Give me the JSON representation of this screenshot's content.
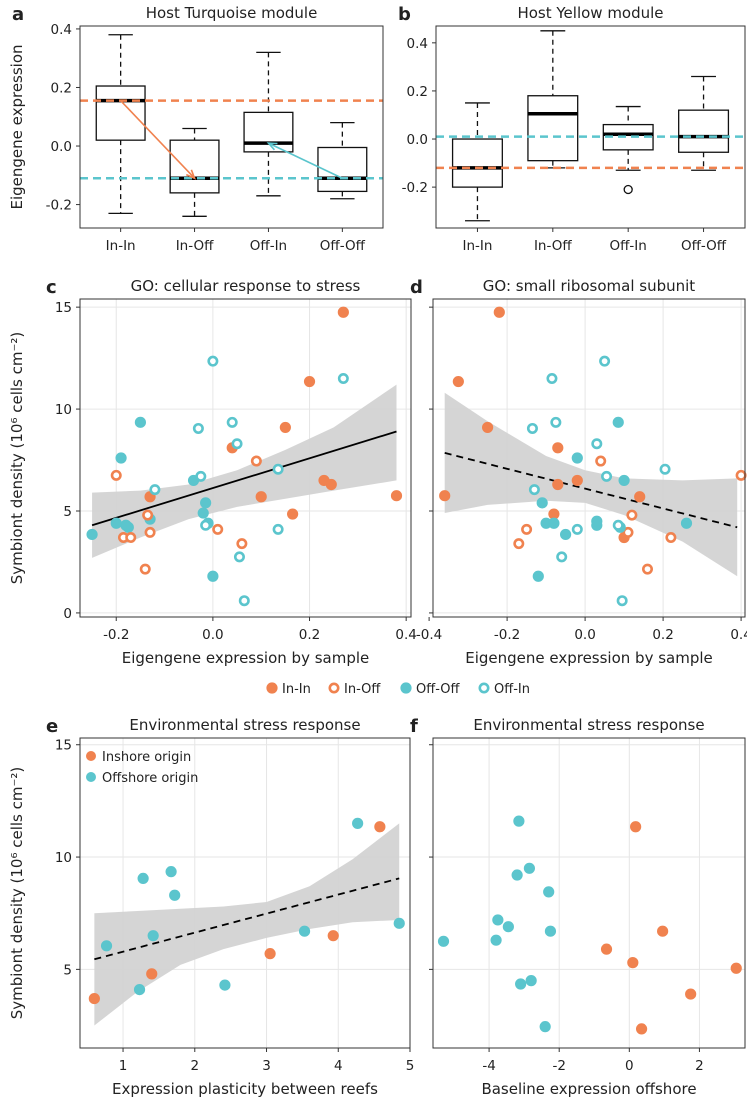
{
  "colors": {
    "inshore": "#F0824F",
    "offshore": "#5BC5CD",
    "ribbon": "#D3D3D3"
  },
  "chart_data": [
    {
      "id": "a",
      "type": "boxplot",
      "title": "Host Turquoise module",
      "ylabel": "Eigengene expression",
      "categories": [
        "In-In",
        "In-Off",
        "Off-In",
        "Off-Off"
      ],
      "ylim": [
        -0.28,
        0.41
      ],
      "yticks": [
        -0.2,
        0.0,
        0.2,
        0.4
      ],
      "ytick_labels": [
        "-0.2",
        "0.0",
        "0.2",
        "0.4"
      ],
      "boxes": [
        {
          "min": -0.23,
          "q1": 0.02,
          "median": 0.155,
          "q3": 0.205,
          "max": 0.38
        },
        {
          "min": -0.24,
          "q1": -0.16,
          "median": -0.11,
          "q3": 0.02,
          "max": 0.06
        },
        {
          "min": -0.17,
          "q1": -0.02,
          "median": 0.01,
          "q3": 0.115,
          "max": 0.32
        },
        {
          "min": -0.18,
          "q1": -0.155,
          "median": -0.11,
          "q3": -0.005,
          "max": 0.08
        }
      ],
      "hlines": [
        {
          "y": 0.155,
          "color": "inshore"
        },
        {
          "y": -0.11,
          "color": "offshore"
        }
      ],
      "arrows": [
        {
          "from_cat": 0,
          "from_y": 0.155,
          "to_cat": 1,
          "to_y": -0.11,
          "color": "inshore"
        },
        {
          "from_cat": 3,
          "from_y": -0.11,
          "to_cat": 2,
          "to_y": 0.01,
          "color": "offshore"
        }
      ]
    },
    {
      "id": "b",
      "type": "boxplot",
      "title": "Host Yellow module",
      "ylabel": "",
      "categories": [
        "In-In",
        "In-Off",
        "Off-In",
        "Off-Off"
      ],
      "ylim": [
        -0.37,
        0.47
      ],
      "yticks": [
        -0.2,
        0.0,
        0.2,
        0.4
      ],
      "ytick_labels": [
        "-0.2",
        "0.0",
        "0.2",
        "0.4"
      ],
      "boxes": [
        {
          "min": -0.34,
          "q1": -0.2,
          "median": -0.12,
          "q3": 0.0,
          "max": 0.15,
          "outliers": []
        },
        {
          "min": -0.12,
          "q1": -0.09,
          "median": 0.105,
          "q3": 0.18,
          "max": 0.45,
          "outliers": []
        },
        {
          "min": -0.13,
          "q1": -0.045,
          "median": 0.02,
          "q3": 0.06,
          "max": 0.135,
          "outliers": [
            -0.21
          ]
        },
        {
          "min": -0.13,
          "q1": -0.055,
          "median": 0.01,
          "q3": 0.12,
          "max": 0.26,
          "outliers": []
        }
      ],
      "hlines": [
        {
          "y": 0.01,
          "color": "offshore"
        },
        {
          "y": -0.12,
          "color": "inshore"
        }
      ]
    },
    {
      "id": "c",
      "type": "scatter",
      "title": "GO: cellular response to stress",
      "xlabel": "Eigengene expression by sample",
      "ylabel": "Symbiont density (10⁶ cells cm⁻²)",
      "xlim": [
        -0.275,
        0.41
      ],
      "ylim": [
        -0.2,
        15.4
      ],
      "xticks": [
        -0.2,
        0.0,
        0.2,
        0.4
      ],
      "xtick_labels": [
        "-0.2",
        "0.0",
        "0.2",
        "0.4"
      ],
      "yticks": [
        0,
        5,
        10,
        15
      ],
      "ytick_labels": [
        "0",
        "5",
        "10",
        "15"
      ],
      "trend": {
        "x": [
          -0.25,
          0.38
        ],
        "y": [
          4.3,
          8.9
        ],
        "dash": false
      },
      "ribbon": {
        "x": [
          -0.25,
          -0.15,
          -0.05,
          0.05,
          0.15,
          0.25,
          0.38
        ],
        "upper": [
          5.9,
          6.0,
          6.3,
          7.0,
          8.0,
          9.1,
          11.2
        ],
        "lower": [
          2.7,
          3.7,
          4.6,
          5.2,
          5.6,
          6.0,
          6.5
        ]
      },
      "points": [
        {
          "x": -0.25,
          "y": 3.85,
          "g": "Off-Off"
        },
        {
          "x": -0.2,
          "y": 4.4,
          "g": "Off-Off"
        },
        {
          "x": -0.19,
          "y": 7.6,
          "g": "Off-Off"
        },
        {
          "x": -0.18,
          "y": 4.3,
          "g": "Off-Off"
        },
        {
          "x": -0.175,
          "y": 4.2,
          "g": "Off-Off"
        },
        {
          "x": -0.15,
          "y": 9.35,
          "g": "Off-Off"
        },
        {
          "x": -0.13,
          "y": 4.6,
          "g": "Off-Off"
        },
        {
          "x": -0.04,
          "y": 6.5,
          "g": "Off-Off"
        },
        {
          "x": -0.02,
          "y": 4.9,
          "g": "Off-Off"
        },
        {
          "x": -0.015,
          "y": 5.4,
          "g": "Off-Off"
        },
        {
          "x": -0.01,
          "y": 4.4,
          "g": "Off-Off"
        },
        {
          "x": 0.0,
          "y": 1.8,
          "g": "Off-Off"
        },
        {
          "x": -0.2,
          "y": 6.75,
          "g": "In-Off"
        },
        {
          "x": -0.185,
          "y": 3.7,
          "g": "In-Off"
        },
        {
          "x": -0.17,
          "y": 3.7,
          "g": "In-Off"
        },
        {
          "x": -0.14,
          "y": 2.15,
          "g": "In-Off"
        },
        {
          "x": -0.135,
          "y": 4.8,
          "g": "In-Off"
        },
        {
          "x": -0.13,
          "y": 3.95,
          "g": "In-Off"
        },
        {
          "x": 0.01,
          "y": 4.1,
          "g": "In-Off"
        },
        {
          "x": 0.06,
          "y": 3.4,
          "g": "In-Off"
        },
        {
          "x": 0.09,
          "y": 7.45,
          "g": "In-Off"
        },
        {
          "x": -0.13,
          "y": 5.7,
          "g": "In-In"
        },
        {
          "x": 0.04,
          "y": 8.1,
          "g": "In-In"
        },
        {
          "x": 0.1,
          "y": 5.7,
          "g": "In-In"
        },
        {
          "x": 0.15,
          "y": 9.1,
          "g": "In-In"
        },
        {
          "x": 0.165,
          "y": 4.85,
          "g": "In-In"
        },
        {
          "x": 0.2,
          "y": 11.35,
          "g": "In-In"
        },
        {
          "x": 0.23,
          "y": 6.5,
          "g": "In-In"
        },
        {
          "x": 0.245,
          "y": 6.3,
          "g": "In-In"
        },
        {
          "x": 0.27,
          "y": 14.75,
          "g": "In-In"
        },
        {
          "x": 0.38,
          "y": 5.75,
          "g": "In-In"
        },
        {
          "x": -0.12,
          "y": 6.05,
          "g": "Off-In"
        },
        {
          "x": -0.03,
          "y": 9.05,
          "g": "Off-In"
        },
        {
          "x": -0.025,
          "y": 6.7,
          "g": "Off-In"
        },
        {
          "x": -0.015,
          "y": 4.3,
          "g": "Off-In"
        },
        {
          "x": 0.0,
          "y": 12.35,
          "g": "Off-In"
        },
        {
          "x": 0.04,
          "y": 9.35,
          "g": "Off-In"
        },
        {
          "x": 0.05,
          "y": 8.3,
          "g": "Off-In"
        },
        {
          "x": 0.055,
          "y": 2.75,
          "g": "Off-In"
        },
        {
          "x": 0.065,
          "y": 0.6,
          "g": "Off-In"
        },
        {
          "x": 0.135,
          "y": 4.1,
          "g": "Off-In"
        },
        {
          "x": 0.135,
          "y": 7.05,
          "g": "Off-In"
        },
        {
          "x": 0.27,
          "y": 11.5,
          "g": "Off-In"
        }
      ]
    },
    {
      "id": "d",
      "type": "scatter",
      "title": "GO: small ribosomal subunit",
      "xlabel": "Eigengene expression by sample",
      "ylabel": "",
      "xlim": [
        -0.39,
        0.41
      ],
      "ylim": [
        -0.2,
        15.4
      ],
      "xticks": [
        -0.4,
        -0.2,
        0.0,
        0.2,
        0.4
      ],
      "xtick_labels": [
        "-0.4",
        "-0.2",
        "0.0",
        "0.2",
        "0.4"
      ],
      "yticks": [
        0,
        5,
        10,
        15
      ],
      "ytick_labels": [],
      "trend": {
        "x": [
          -0.36,
          0.39
        ],
        "y": [
          7.85,
          4.2
        ],
        "dash": true
      },
      "ribbon": {
        "x": [
          -0.36,
          -0.25,
          -0.1,
          0.0,
          0.1,
          0.25,
          0.39
        ],
        "upper": [
          10.8,
          9.4,
          7.7,
          7.0,
          6.6,
          6.5,
          6.6
        ],
        "lower": [
          4.9,
          5.3,
          5.5,
          5.4,
          4.8,
          3.5,
          1.8
        ]
      },
      "points": [
        {
          "x": -0.36,
          "y": 5.75,
          "g": "In-In"
        },
        {
          "x": -0.325,
          "y": 11.35,
          "g": "In-In"
        },
        {
          "x": -0.25,
          "y": 9.1,
          "g": "In-In"
        },
        {
          "x": -0.22,
          "y": 14.75,
          "g": "In-In"
        },
        {
          "x": -0.07,
          "y": 6.3,
          "g": "In-In"
        },
        {
          "x": -0.08,
          "y": 4.85,
          "g": "In-In"
        },
        {
          "x": -0.07,
          "y": 8.1,
          "g": "In-In"
        },
        {
          "x": -0.02,
          "y": 6.5,
          "g": "In-In"
        },
        {
          "x": 0.1,
          "y": 3.7,
          "g": "In-In"
        },
        {
          "x": 0.14,
          "y": 5.7,
          "g": "In-In"
        },
        {
          "x": -0.17,
          "y": 3.4,
          "g": "In-Off"
        },
        {
          "x": -0.15,
          "y": 4.1,
          "g": "In-Off"
        },
        {
          "x": 0.04,
          "y": 7.45,
          "g": "In-Off"
        },
        {
          "x": 0.11,
          "y": 3.95,
          "g": "In-Off"
        },
        {
          "x": 0.12,
          "y": 4.8,
          "g": "In-Off"
        },
        {
          "x": 0.16,
          "y": 2.15,
          "g": "In-Off"
        },
        {
          "x": 0.22,
          "y": 3.7,
          "g": "In-Off"
        },
        {
          "x": 0.4,
          "y": 6.75,
          "g": "In-Off"
        },
        {
          "x": -0.12,
          "y": 1.8,
          "g": "Off-Off"
        },
        {
          "x": -0.11,
          "y": 5.4,
          "g": "Off-Off"
        },
        {
          "x": -0.1,
          "y": 4.4,
          "g": "Off-Off"
        },
        {
          "x": -0.08,
          "y": 4.4,
          "g": "Off-Off"
        },
        {
          "x": -0.05,
          "y": 3.85,
          "g": "Off-Off"
        },
        {
          "x": -0.02,
          "y": 7.6,
          "g": "Off-Off"
        },
        {
          "x": 0.03,
          "y": 4.3,
          "g": "Off-Off"
        },
        {
          "x": 0.03,
          "y": 4.5,
          "g": "Off-Off"
        },
        {
          "x": 0.09,
          "y": 4.2,
          "g": "Off-Off"
        },
        {
          "x": 0.085,
          "y": 9.35,
          "g": "Off-Off"
        },
        {
          "x": 0.1,
          "y": 6.5,
          "g": "Off-Off"
        },
        {
          "x": 0.26,
          "y": 4.4,
          "g": "Off-Off"
        },
        {
          "x": -0.135,
          "y": 9.05,
          "g": "Off-In"
        },
        {
          "x": -0.13,
          "y": 6.05,
          "g": "Off-In"
        },
        {
          "x": -0.085,
          "y": 11.5,
          "g": "Off-In"
        },
        {
          "x": -0.075,
          "y": 9.35,
          "g": "Off-In"
        },
        {
          "x": -0.06,
          "y": 2.75,
          "g": "Off-In"
        },
        {
          "x": -0.02,
          "y": 4.1,
          "g": "Off-In"
        },
        {
          "x": 0.03,
          "y": 8.3,
          "g": "Off-In"
        },
        {
          "x": 0.05,
          "y": 12.35,
          "g": "Off-In"
        },
        {
          "x": 0.055,
          "y": 6.7,
          "g": "Off-In"
        },
        {
          "x": 0.085,
          "y": 4.3,
          "g": "Off-In"
        },
        {
          "x": 0.095,
          "y": 0.6,
          "g": "Off-In"
        },
        {
          "x": 0.205,
          "y": 7.05,
          "g": "Off-In"
        }
      ]
    },
    {
      "id": "e",
      "type": "scatter",
      "title": "Environmental stress response",
      "xlabel": "Expression plasticity between reefs",
      "ylabel": "Symbiont density (10⁶ cells cm⁻²)",
      "xlim": [
        0.4,
        5.0
      ],
      "ylim": [
        1.5,
        15.3
      ],
      "xticks": [
        1,
        2,
        3,
        4,
        5
      ],
      "xtick_labels": [
        "1",
        "2",
        "3",
        "4",
        "5"
      ],
      "yticks": [
        5,
        10,
        15
      ],
      "ytick_labels": [
        "5",
        "10",
        "15"
      ],
      "trend": {
        "x": [
          0.6,
          4.85
        ],
        "y": [
          5.45,
          9.05
        ],
        "dash": true
      },
      "ribbon": {
        "x": [
          0.6,
          1.2,
          1.8,
          2.4,
          3.0,
          3.6,
          4.2,
          4.85
        ],
        "upper": [
          7.5,
          7.6,
          7.7,
          7.8,
          8.0,
          8.7,
          9.9,
          11.5
        ],
        "lower": [
          2.5,
          4.0,
          5.2,
          5.9,
          6.4,
          6.8,
          7.1,
          7.2
        ]
      },
      "legend": [
        {
          "label": "Inshore origin",
          "color": "inshore"
        },
        {
          "label": "Offshore origin",
          "color": "offshore"
        }
      ],
      "points": [
        {
          "x": 0.6,
          "y": 3.7,
          "g": "In"
        },
        {
          "x": 1.4,
          "y": 4.8,
          "g": "In"
        },
        {
          "x": 3.05,
          "y": 5.7,
          "g": "In"
        },
        {
          "x": 3.93,
          "y": 6.5,
          "g": "In"
        },
        {
          "x": 4.58,
          "y": 11.35,
          "g": "In"
        },
        {
          "x": 0.77,
          "y": 6.05,
          "g": "Off"
        },
        {
          "x": 1.23,
          "y": 4.1,
          "g": "Off"
        },
        {
          "x": 1.28,
          "y": 9.05,
          "g": "Off"
        },
        {
          "x": 1.42,
          "y": 6.5,
          "g": "Off"
        },
        {
          "x": 1.67,
          "y": 9.35,
          "g": "Off"
        },
        {
          "x": 1.72,
          "y": 8.3,
          "g": "Off"
        },
        {
          "x": 2.42,
          "y": 4.3,
          "g": "Off"
        },
        {
          "x": 3.53,
          "y": 6.7,
          "g": "Off"
        },
        {
          "x": 4.27,
          "y": 11.5,
          "g": "Off"
        },
        {
          "x": 4.85,
          "y": 7.05,
          "g": "Off"
        }
      ]
    },
    {
      "id": "f",
      "type": "scatter",
      "title": "Environmental stress response",
      "xlabel": "Baseline expression offshore",
      "ylabel": "",
      "xlim": [
        -5.6,
        3.3
      ],
      "ylim": [
        1.5,
        15.3
      ],
      "xticks": [
        -4,
        -2,
        0,
        2
      ],
      "xtick_labels": [
        "-4",
        "-2",
        "0",
        "2"
      ],
      "yticks": [
        5,
        10,
        15
      ],
      "ytick_labels": [],
      "points": [
        {
          "x": 0.18,
          "y": 11.35,
          "g": "In"
        },
        {
          "x": 0.95,
          "y": 6.7,
          "g": "In"
        },
        {
          "x": -0.65,
          "y": 5.9,
          "g": "In"
        },
        {
          "x": 0.1,
          "y": 5.3,
          "g": "In"
        },
        {
          "x": 3.05,
          "y": 5.05,
          "g": "In"
        },
        {
          "x": 1.75,
          "y": 3.9,
          "g": "In"
        },
        {
          "x": 0.35,
          "y": 2.35,
          "g": "In"
        },
        {
          "x": -5.3,
          "y": 6.25,
          "g": "Off"
        },
        {
          "x": -3.75,
          "y": 7.2,
          "g": "Off"
        },
        {
          "x": -3.8,
          "y": 6.3,
          "g": "Off"
        },
        {
          "x": -3.45,
          "y": 6.9,
          "g": "Off"
        },
        {
          "x": -3.15,
          "y": 11.6,
          "g": "Off"
        },
        {
          "x": -3.2,
          "y": 9.2,
          "g": "Off"
        },
        {
          "x": -2.85,
          "y": 9.5,
          "g": "Off"
        },
        {
          "x": -2.3,
          "y": 8.45,
          "g": "Off"
        },
        {
          "x": -2.25,
          "y": 6.7,
          "g": "Off"
        },
        {
          "x": -3.1,
          "y": 4.35,
          "g": "Off"
        },
        {
          "x": -2.8,
          "y": 4.5,
          "g": "Off"
        },
        {
          "x": -2.4,
          "y": 2.45,
          "g": "Off"
        }
      ]
    }
  ],
  "legend_cd": [
    {
      "label": "In-In",
      "color": "inshore",
      "filled": true
    },
    {
      "label": "In-Off",
      "color": "inshore",
      "filled": false
    },
    {
      "label": "Off-Off",
      "color": "offshore",
      "filled": true
    },
    {
      "label": "Off-In",
      "color": "offshore",
      "filled": false
    }
  ],
  "shared_ylabel_cd": "Symbiont density (10⁶ cells cm⁻²)",
  "shared_ylabel_ef": "Symbiont density (10⁶ cells cm⁻²)"
}
